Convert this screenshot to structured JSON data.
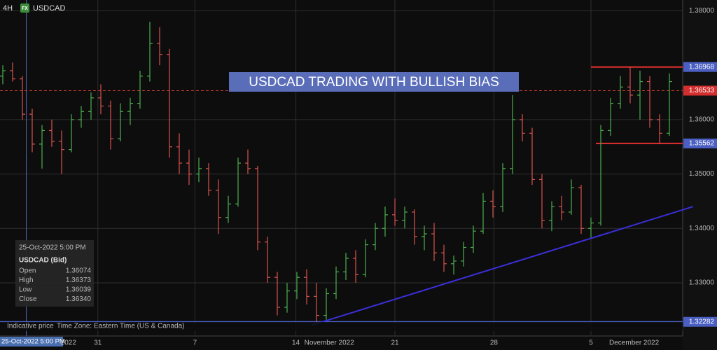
{
  "chart_data": {
    "type": "ohlc",
    "title": "USDCAD TRADING WITH BULLISH BIAS",
    "interval": "4H",
    "badge": "FX",
    "symbol": "USDCAD",
    "footer": {
      "price_note": "Indicative price",
      "time_zone": "Time Zone: Eastern Time (US & Canada)"
    },
    "up_color": "#4caf50",
    "down_color": "#d9534f",
    "ylim": [
      1.3215,
      1.382
    ],
    "yticks": [
      {
        "value": 1.38,
        "label": "1.38000"
      },
      {
        "value": 1.36,
        "label": "1.36000"
      },
      {
        "value": 1.35,
        "label": "1.35000"
      },
      {
        "value": 1.34,
        "label": "1.34000"
      },
      {
        "value": 1.33,
        "label": "1.33000"
      }
    ],
    "xticks": [
      {
        "value": 6.7,
        "label": "2022"
      },
      {
        "value": 9.7,
        "label": "31"
      },
      {
        "value": 19.6,
        "label": "7"
      },
      {
        "value": 29.9,
        "label": "14"
      },
      {
        "value": 33.3,
        "label": "November 2022"
      },
      {
        "value": 40,
        "label": "21"
      },
      {
        "value": 50.1,
        "label": "28"
      },
      {
        "value": 60,
        "label": "5"
      },
      {
        "value": 64.4,
        "label": "December 2022"
      }
    ],
    "grid_x": [
      9.7,
      19.6,
      29.9,
      40,
      50.1,
      60
    ],
    "crosshair": {
      "x": 2.4,
      "label": "25-Oct-2022 5:00 PM",
      "color": "#4a6fb0"
    },
    "tooltip": {
      "time": "25-Oct-2022 5:00 PM",
      "instrument": "USDCAD (Bid)",
      "rows": [
        [
          "Open",
          1.36074
        ],
        [
          "High",
          1.36373
        ],
        [
          "Low",
          1.36039
        ],
        [
          "Close",
          {
            "value": 1.3634,
            "label": "1.36340"
          }
        ]
      ]
    },
    "price_lines": [
      {
        "value": 1.36968,
        "line_color": "#e0302f",
        "box_color": "#4a5fc1",
        "dashed": false,
        "from": 60.0
      },
      {
        "value": 1.36533,
        "line_color": "#c0392b",
        "box_color": "#d32f2f",
        "dashed": true,
        "from": -1
      },
      {
        "value": 1.35562,
        "line_color": "#e0302f",
        "box_color": "#4a5fc1",
        "dashed": false,
        "from": 60.5
      },
      {
        "value": 1.32282,
        "line_color": "#4a5fc1",
        "box_color": "#4a5fc1",
        "dashed": false,
        "from": -1
      }
    ],
    "trendline": {
      "start": [
        31.5,
        1.3222
      ],
      "end": [
        70.4,
        1.344
      ],
      "color": "#3a2fd8"
    },
    "bars": [
      [
        1.368,
        1.37,
        1.3665,
        1.369
      ],
      [
        1.369,
        1.3705,
        1.367,
        1.3675
      ],
      [
        1.3675,
        1.368,
        1.36,
        1.361
      ],
      [
        1.361,
        1.362,
        1.354,
        1.3555
      ],
      [
        1.3555,
        1.359,
        1.351,
        1.358
      ],
      [
        1.358,
        1.36,
        1.355,
        1.356
      ],
      [
        1.356,
        1.358,
        1.35,
        1.3545
      ],
      [
        1.3545,
        1.361,
        1.354,
        1.36
      ],
      [
        1.36,
        1.3625,
        1.3585,
        1.3615
      ],
      [
        1.3615,
        1.365,
        1.36,
        1.364
      ],
      [
        1.364,
        1.3665,
        1.361,
        1.3625
      ],
      [
        1.3625,
        1.3635,
        1.3545,
        1.3565
      ],
      [
        1.3565,
        1.363,
        1.356,
        1.3615
      ],
      [
        1.3615,
        1.364,
        1.359,
        1.363
      ],
      [
        1.363,
        1.369,
        1.362,
        1.368
      ],
      [
        1.368,
        1.378,
        1.367,
        1.374
      ],
      [
        1.374,
        1.377,
        1.37,
        1.372
      ],
      [
        1.372,
        1.373,
        1.353,
        1.355
      ],
      [
        1.355,
        1.3575,
        1.35,
        1.352
      ],
      [
        1.352,
        1.3545,
        1.348,
        1.35
      ],
      [
        1.35,
        1.353,
        1.3485,
        1.351
      ],
      [
        1.351,
        1.352,
        1.346,
        1.347
      ],
      [
        1.347,
        1.349,
        1.339,
        1.342
      ],
      [
        1.342,
        1.346,
        1.341,
        1.3445
      ],
      [
        1.3445,
        1.353,
        1.344,
        1.352
      ],
      [
        1.352,
        1.3545,
        1.35,
        1.351
      ],
      [
        1.351,
        1.3515,
        1.336,
        1.3375
      ],
      [
        1.3375,
        1.3385,
        1.33,
        1.331
      ],
      [
        1.331,
        1.332,
        1.324,
        1.3255
      ],
      [
        1.3255,
        1.33,
        1.3245,
        1.3285
      ],
      [
        1.3285,
        1.332,
        1.327,
        1.331
      ],
      [
        1.331,
        1.3325,
        1.326,
        1.3275
      ],
      [
        1.3275,
        1.33,
        1.3228,
        1.324
      ],
      [
        1.324,
        1.329,
        1.3232,
        1.328
      ],
      [
        1.328,
        1.333,
        1.327,
        1.332
      ],
      [
        1.332,
        1.3355,
        1.3305,
        1.3345
      ],
      [
        1.3345,
        1.336,
        1.33,
        1.3315
      ],
      [
        1.3315,
        1.338,
        1.331,
        1.337
      ],
      [
        1.337,
        1.341,
        1.336,
        1.34
      ],
      [
        1.34,
        1.344,
        1.3385,
        1.3425
      ],
      [
        1.3425,
        1.3455,
        1.3405,
        1.3415
      ],
      [
        1.3415,
        1.344,
        1.34,
        1.343
      ],
      [
        1.343,
        1.3435,
        1.337,
        1.3385
      ],
      [
        1.3385,
        1.3405,
        1.336,
        1.339
      ],
      [
        1.339,
        1.341,
        1.334,
        1.3355
      ],
      [
        1.3355,
        1.337,
        1.332,
        1.3335
      ],
      [
        1.3335,
        1.335,
        1.3315,
        1.334
      ],
      [
        1.334,
        1.3375,
        1.333,
        1.3365
      ],
      [
        1.3365,
        1.3405,
        1.3355,
        1.3395
      ],
      [
        1.3395,
        1.3465,
        1.339,
        1.345
      ],
      [
        1.345,
        1.347,
        1.342,
        1.344
      ],
      [
        1.344,
        1.352,
        1.343,
        1.351
      ],
      [
        1.351,
        1.3645,
        1.35,
        1.36
      ],
      [
        1.36,
        1.361,
        1.356,
        1.3575
      ],
      [
        1.3575,
        1.3585,
        1.348,
        1.349
      ],
      [
        1.349,
        1.35,
        1.34,
        1.3415
      ],
      [
        1.3415,
        1.345,
        1.3395,
        1.344
      ],
      [
        1.344,
        1.346,
        1.3415,
        1.343
      ],
      [
        1.343,
        1.349,
        1.3425,
        1.3475
      ],
      [
        1.3475,
        1.348,
        1.339,
        1.34
      ],
      [
        1.34,
        1.342,
        1.3383,
        1.341
      ],
      [
        1.341,
        1.359,
        1.3405,
        1.358
      ],
      [
        1.358,
        1.364,
        1.357,
        1.363
      ],
      [
        1.363,
        1.368,
        1.362,
        1.366
      ],
      [
        1.366,
        1.3697,
        1.363,
        1.3645
      ],
      [
        1.3645,
        1.369,
        1.36,
        1.367
      ],
      [
        1.367,
        1.368,
        1.3585,
        1.36
      ],
      [
        1.36,
        1.361,
        1.3556,
        1.3575
      ],
      [
        1.3575,
        1.3685,
        1.357,
        1.367
      ]
    ]
  }
}
